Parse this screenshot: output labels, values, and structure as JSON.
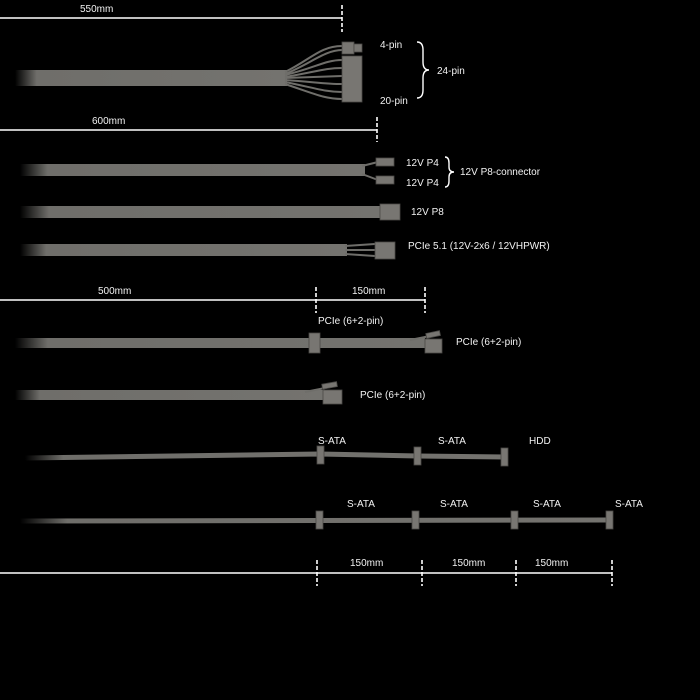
{
  "colors": {
    "background": "#000000",
    "cable": "#6f6e6a",
    "text": "#f2f2f2"
  },
  "dimensions": {
    "atx_length": "550mm",
    "eps_length": "600mm",
    "pcie_main_length": "500mm",
    "pcie_extension_length": "150mm",
    "sata_spacing": [
      "150mm",
      "150mm",
      "150mm"
    ]
  },
  "cables": {
    "atx": {
      "pin4": "4-pin",
      "pin20": "20-pin",
      "total": "24-pin"
    },
    "eps_split": {
      "p4_a": "12V P4",
      "p4_b": "12V P4",
      "group": "12V P8-connector"
    },
    "eps": {
      "label": "12V P8"
    },
    "pcie5": {
      "label": "PCIe 5.1 (12V-2x6 / 12VHPWR)"
    },
    "pcie_daisy": {
      "first": "PCIe (6+2-pin)",
      "second": "PCIe (6+2-pin)"
    },
    "pcie_single": {
      "label": "PCIe (6+2-pin)"
    },
    "sata_hdd": {
      "labels": [
        "S-ATA",
        "S-ATA",
        "HDD"
      ]
    },
    "sata": {
      "labels": [
        "S-ATA",
        "S-ATA",
        "S-ATA",
        "S-ATA"
      ]
    }
  }
}
